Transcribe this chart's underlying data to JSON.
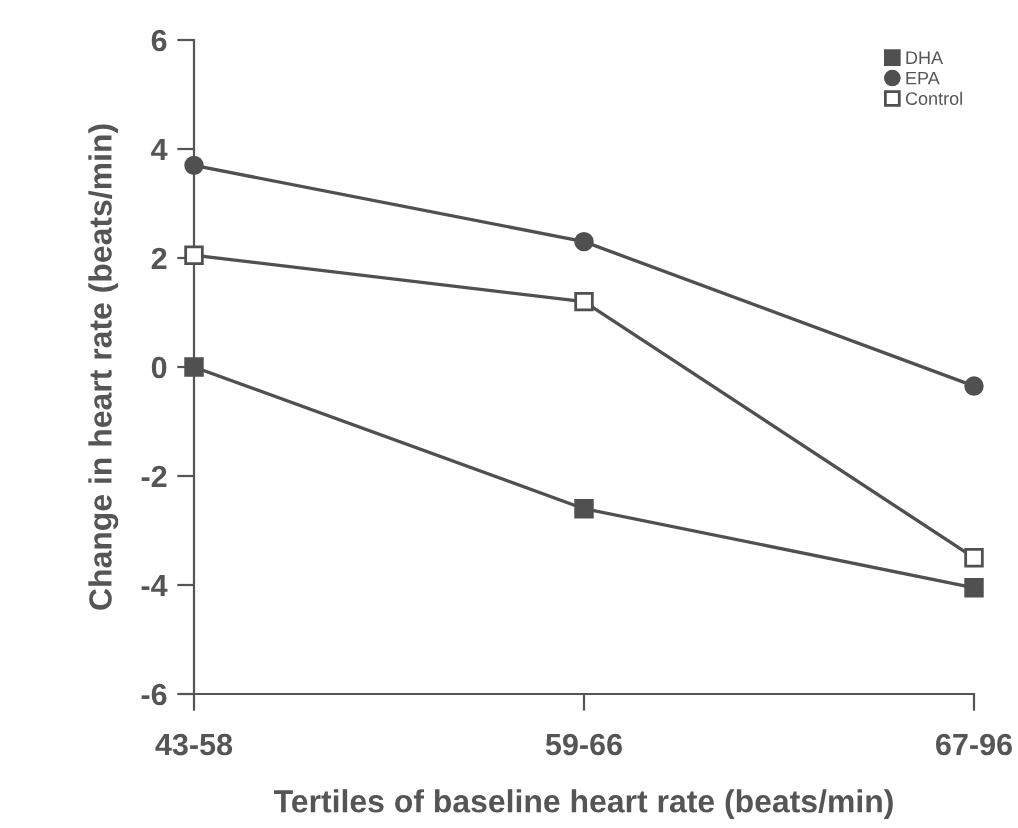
{
  "chart_data": {
    "type": "line",
    "xlabel": "Tertiles of baseline heart rate (beats/min)",
    "ylabel": "Change in heart rate (beats/min)",
    "categories": [
      "43-58",
      "59-66",
      "67-96"
    ],
    "series": [
      {
        "name": "DHA",
        "color": "#505050",
        "marker": "square",
        "values": [
          0.0,
          -2.6,
          -4.05
        ]
      },
      {
        "name": "EPA",
        "color": "#505050",
        "marker": "circle",
        "values": [
          3.7,
          2.3,
          -0.35
        ]
      },
      {
        "name": "Control",
        "color": "#505050",
        "marker": "square",
        "values": [
          2.05,
          1.2,
          -3.5
        ]
      }
    ],
    "ylim": [
      -6,
      6
    ],
    "yticks": [
      {
        "value": -6,
        "label": "-6"
      },
      {
        "value": -4,
        "label": "-4"
      },
      {
        "value": -2,
        "label": "-2"
      },
      0,
      2,
      4,
      6
    ],
    "legend": "top right",
    "grid": false
  }
}
